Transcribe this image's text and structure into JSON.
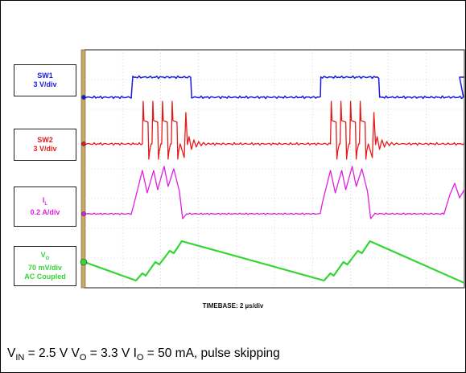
{
  "colors": {
    "sw1": "#1a1ae6",
    "sw2": "#e61a1a",
    "il": "#e01ee0",
    "vo": "#33d633",
    "grid": "#b8b8b8",
    "frame_side": "#c8a968"
  },
  "labels": {
    "sw1": {
      "name": "SW1",
      "scale": "3 V/div"
    },
    "sw2": {
      "name": "SW2",
      "scale": "3 V/div"
    },
    "il": {
      "name": "I",
      "name_sub": "L",
      "scale": "0.2 A/div"
    },
    "vo": {
      "name": "V",
      "name_sub": "O",
      "scale": "70 mV/div",
      "coupling": "AC Coupled"
    }
  },
  "timebase": "TIMEBASE: 2 µs/div",
  "caption": {
    "vin_symbol": "V",
    "vin_sub": "IN",
    "vin_value": " = 2.5 V ",
    "vo_symbol": "V",
    "vo_sub": "O",
    "vo_value": " = 3.3 V ",
    "io_symbol": "I",
    "io_sub": "O",
    "io_value": " = 50 mA, pulse skipping"
  },
  "chart_data": {
    "type": "line",
    "title": "",
    "xlabel": "TIMEBASE: 2 µs/div",
    "ylabel": "",
    "divisions_x": 10,
    "divisions_y": 8,
    "burst_period_div": 4.95,
    "series": [
      {
        "name": "SW1",
        "scale": "3 V/div",
        "description": "switch-node 1: high during each burst (~2.4 div wide), low otherwise"
      },
      {
        "name": "SW2",
        "scale": "3 V/div",
        "description": "switch-node 2: 4 switching pulses per burst with ringing after burst"
      },
      {
        "name": "I_L",
        "scale": "0.2 A/div",
        "description": "inductor current: triangular peaks rising during burst, zero between bursts"
      },
      {
        "name": "V_O",
        "scale": "70 mV/div",
        "coupling": "AC Coupled",
        "description": "output voltage ripple: stepped rise during burst, linear decay between bursts"
      }
    ]
  }
}
